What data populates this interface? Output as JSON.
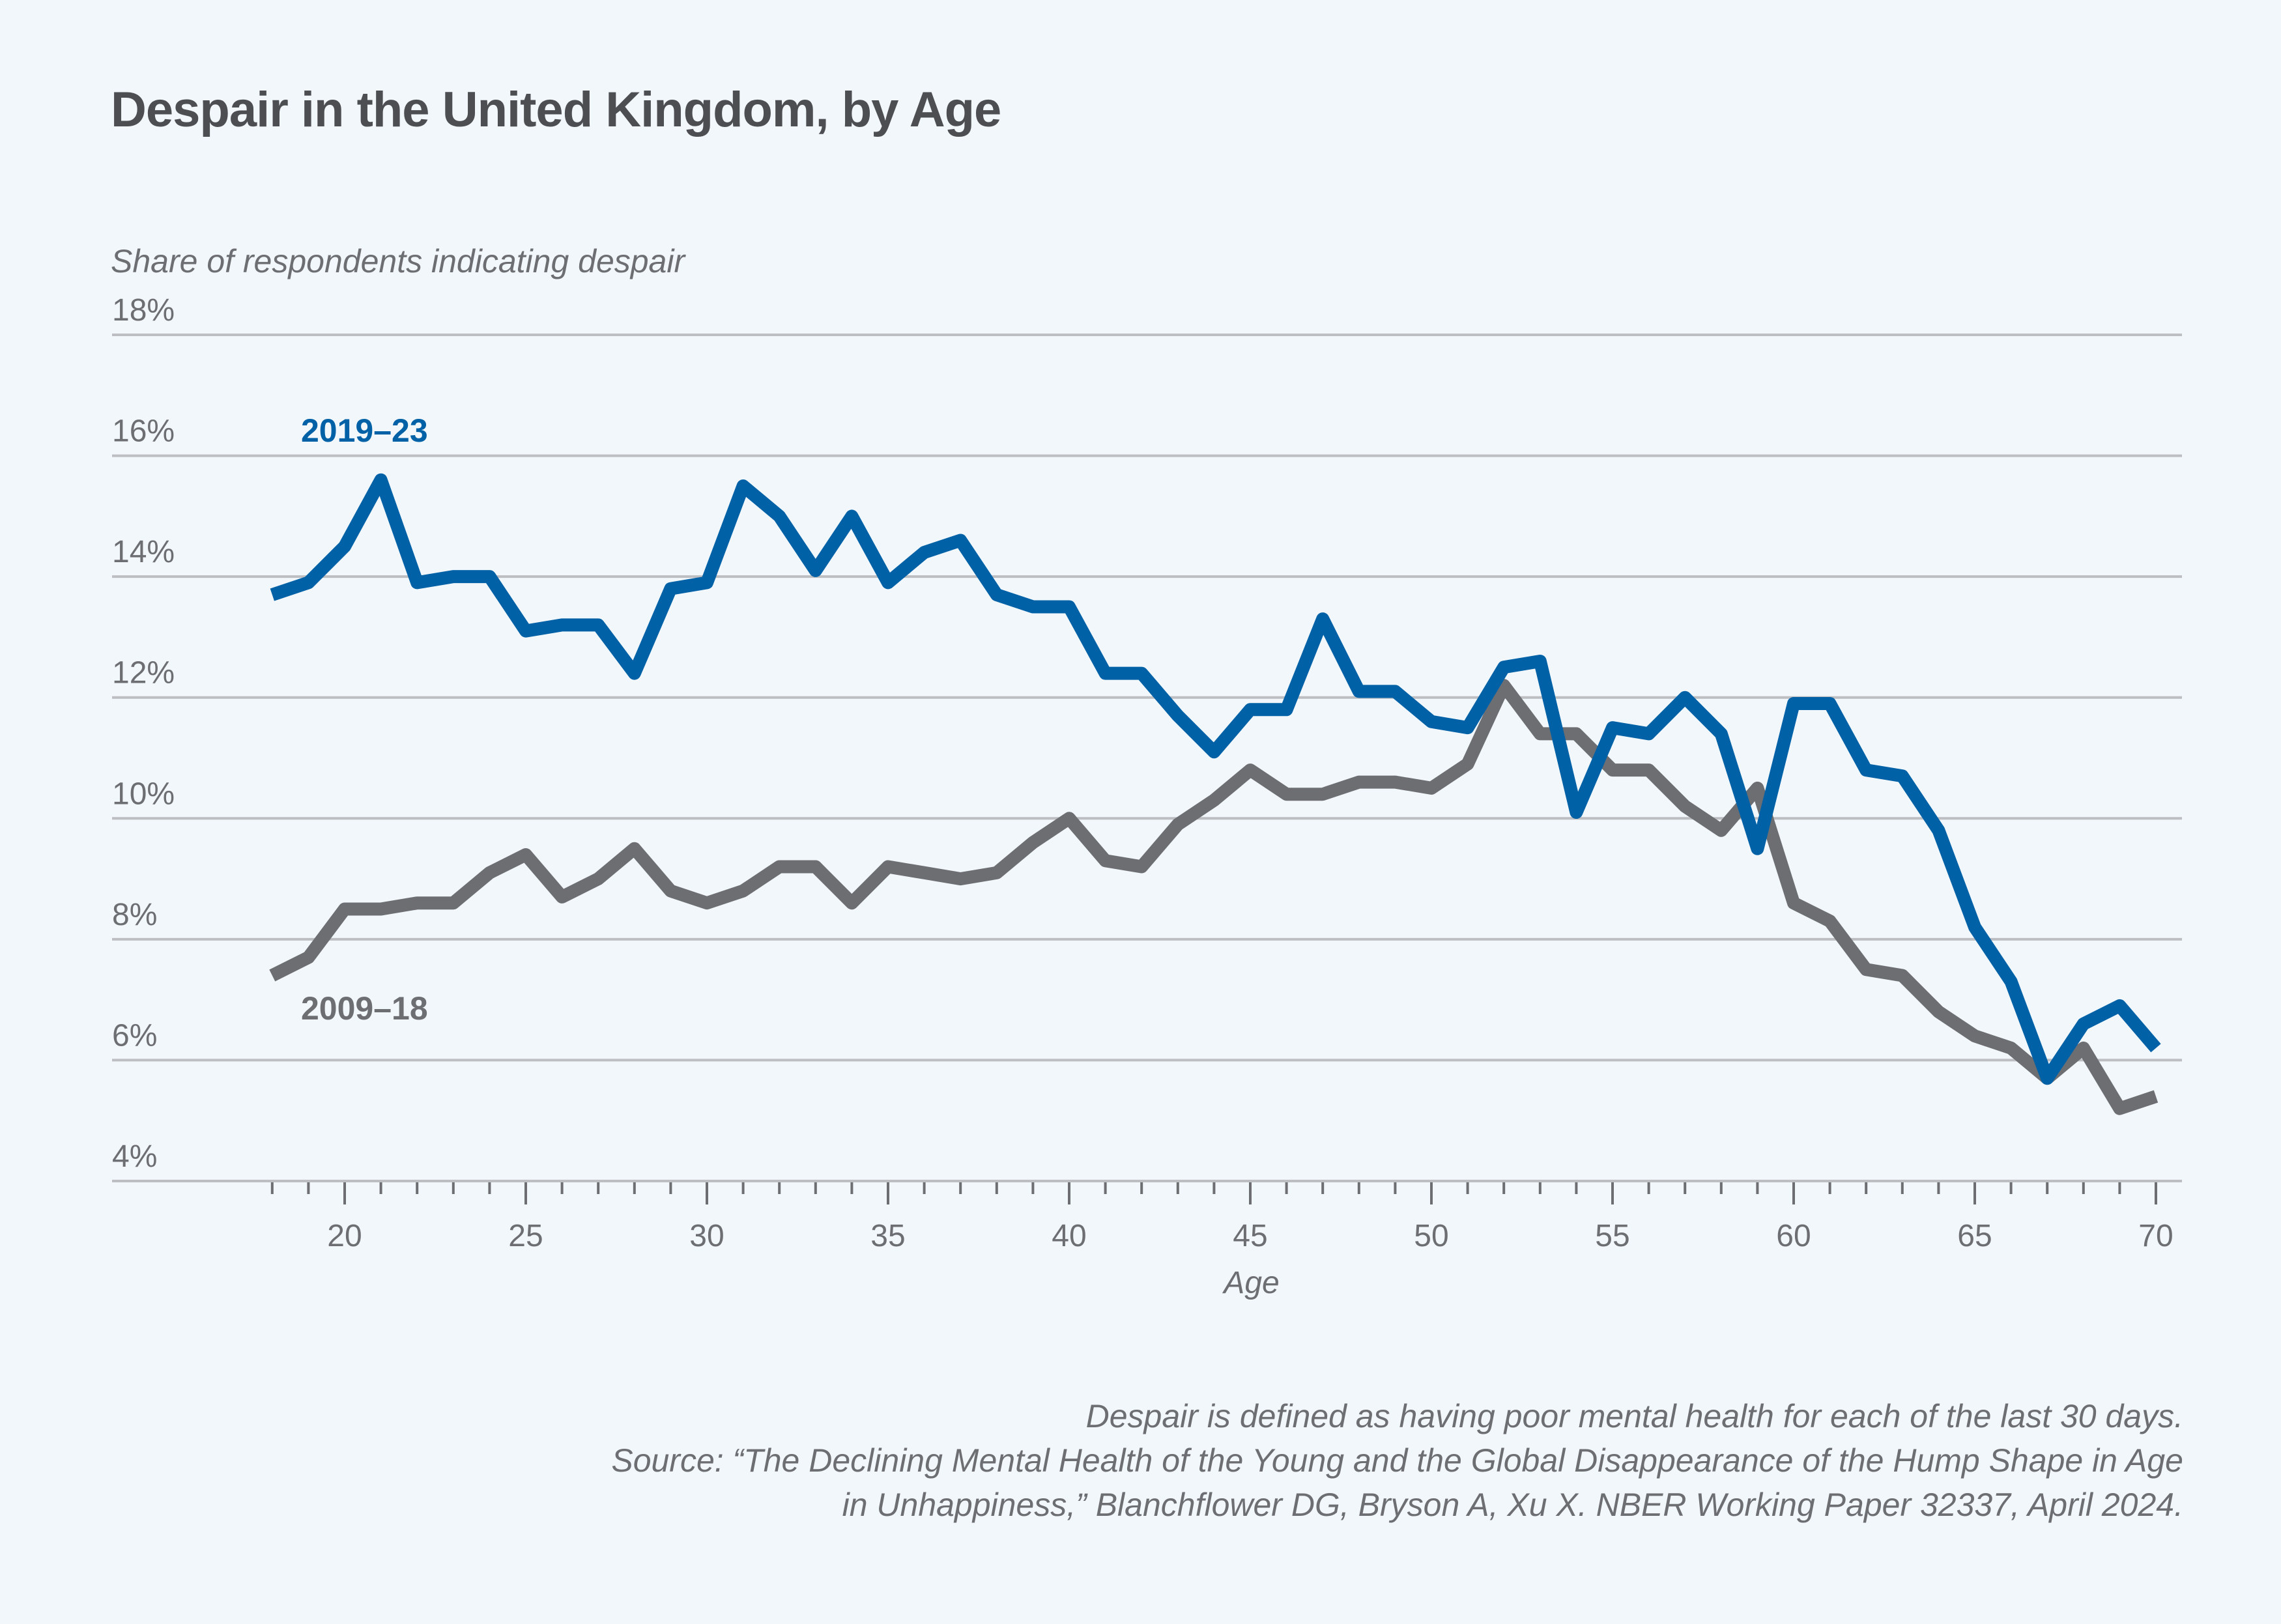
{
  "title": "Despair in the United Kingdom, by Age",
  "footnote": {
    "lines": [
      "Despair is defined as having poor mental health for each of the last 30 days.",
      "Source: “The Declining Mental Health of the Young and the Global Disappearance of the Hump Shape in Age",
      "in Unhappiness,” Blanchflower DG, Bryson A, Xu X. NBER Working Paper 32337, April 2024."
    ]
  },
  "colors": {
    "background": "#f1f7fb",
    "series_2019_23": "#0061a6",
    "series_2009_18": "#6d6e72",
    "gridline": "#bcbec2",
    "text": "#6d6e72",
    "title": "#4d4e52"
  },
  "chart_data": {
    "type": "line",
    "title": "Despair in the United Kingdom, by Age",
    "xlabel": "Age",
    "ylabel": "Share of respondents indicating despair",
    "xlim": [
      18,
      70
    ],
    "ylim": [
      4,
      18
    ],
    "x_ticks_major": [
      20,
      25,
      30,
      35,
      40,
      45,
      50,
      55,
      60,
      65,
      70
    ],
    "x_tick_labels": [
      "20",
      "25",
      "30",
      "35",
      "40",
      "45",
      "50",
      "55",
      "60",
      "65",
      "70"
    ],
    "y_ticks": [
      4,
      6,
      8,
      10,
      12,
      14,
      16,
      18
    ],
    "y_tick_labels": [
      "4%",
      "6%",
      "8%",
      "10%",
      "12%",
      "14%",
      "16%",
      "18%"
    ],
    "grid": true,
    "legend": "inline labels",
    "x": [
      18,
      19,
      20,
      21,
      22,
      23,
      24,
      25,
      26,
      27,
      28,
      29,
      30,
      31,
      32,
      33,
      34,
      35,
      36,
      37,
      38,
      39,
      40,
      41,
      42,
      43,
      44,
      45,
      46,
      47,
      48,
      49,
      50,
      51,
      52,
      53,
      54,
      55,
      56,
      57,
      58,
      59,
      60,
      61,
      62,
      63,
      64,
      65,
      66,
      67,
      68,
      69,
      70
    ],
    "series": [
      {
        "name": "2019–23",
        "label_position": "above line near age 20",
        "values": [
          13.7,
          13.9,
          14.5,
          15.6,
          13.9,
          14.0,
          14.0,
          13.1,
          13.2,
          13.2,
          12.4,
          13.8,
          13.9,
          15.5,
          15.0,
          14.1,
          15.0,
          13.9,
          14.4,
          14.6,
          13.7,
          13.5,
          13.5,
          12.4,
          12.4,
          11.7,
          11.1,
          11.8,
          11.8,
          13.3,
          12.1,
          12.1,
          11.6,
          11.5,
          12.5,
          12.6,
          10.1,
          11.5,
          11.4,
          12.0,
          11.4,
          9.5,
          11.9,
          11.9,
          10.8,
          10.7,
          9.8,
          8.2,
          7.3,
          5.7,
          6.6,
          6.9,
          6.2
        ]
      },
      {
        "name": "2009–18",
        "label_position": "below line near age 20",
        "values": [
          7.4,
          7.7,
          8.5,
          8.5,
          8.6,
          8.6,
          9.1,
          9.4,
          8.7,
          9.0,
          9.5,
          8.8,
          8.6,
          8.8,
          9.2,
          9.2,
          8.6,
          9.2,
          9.1,
          9.0,
          9.1,
          9.6,
          10.0,
          9.3,
          9.2,
          9.9,
          10.3,
          10.8,
          10.4,
          10.4,
          10.6,
          10.6,
          10.5,
          10.9,
          12.2,
          11.4,
          11.4,
          10.8,
          10.8,
          10.2,
          9.8,
          10.5,
          8.6,
          8.3,
          7.5,
          7.4,
          6.8,
          6.4,
          6.2,
          5.7,
          6.2,
          5.2,
          5.4
        ]
      }
    ]
  }
}
